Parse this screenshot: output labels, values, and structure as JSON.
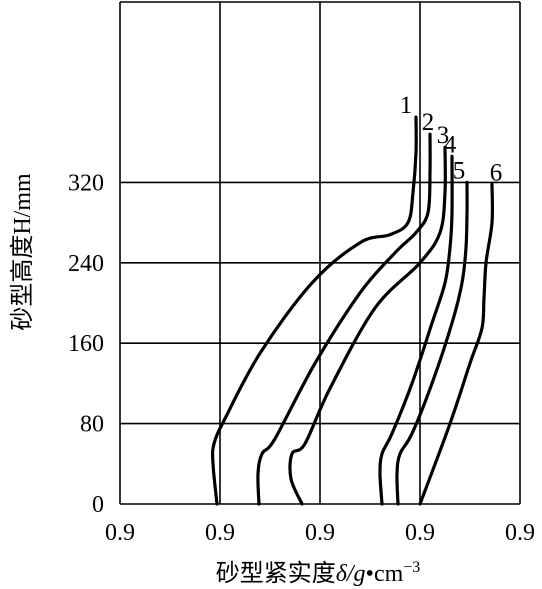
{
  "chart_data": {
    "type": "line",
    "title": "",
    "xlabel": "砂型紧实度δ/g•cm⁻³",
    "xlabel_parts": {
      "main": "砂型紧实度",
      "symbol": "δ",
      "unit": "/g",
      "dot": "•",
      "unit2": "cm",
      "exp": "−3"
    },
    "ylabel": "砂型高度H/mm",
    "xticks": [
      "0.9",
      "0.9",
      "0.9",
      "0.9",
      "0.9"
    ],
    "xlim": [
      0,
      4
    ],
    "yticks": [
      "0",
      "80",
      "160",
      "240",
      "320"
    ],
    "ylim": [
      0,
      400
    ],
    "grid": true,
    "series": [
      {
        "name": "1",
        "x": [
          0.97,
          0.93,
          0.94,
          1.05,
          1.4,
          1.92,
          2.4,
          2.7,
          2.88,
          2.93,
          2.96,
          2.96
        ],
        "y": [
          0,
          40,
          60,
          85,
          150,
          220,
          260,
          268,
          280,
          310,
          350,
          385
        ]
      },
      {
        "name": "2",
        "x": [
          1.39,
          1.38,
          1.42,
          1.55,
          1.95,
          2.4,
          2.75,
          2.96,
          3.08,
          3.1,
          3.1
        ],
        "y": [
          0,
          30,
          50,
          65,
          140,
          210,
          250,
          270,
          290,
          330,
          368
        ]
      },
      {
        "name": "3",
        "x": [
          1.82,
          1.71,
          1.72,
          1.85,
          2.1,
          2.55,
          3.0,
          3.2,
          3.25,
          3.25
        ],
        "y": [
          0,
          25,
          50,
          60,
          115,
          195,
          240,
          270,
          310,
          355
        ]
      },
      {
        "name": "4",
        "x": [
          2.62,
          2.6,
          2.62,
          2.72,
          2.92,
          3.12,
          3.25,
          3.3,
          3.32,
          3.32
        ],
        "y": [
          0,
          30,
          50,
          70,
          120,
          180,
          220,
          255,
          290,
          346
        ]
      },
      {
        "name": "5",
        "x": [
          2.78,
          2.77,
          2.8,
          2.92,
          3.12,
          3.32,
          3.42,
          3.46,
          3.47,
          3.47
        ],
        "y": [
          0,
          30,
          50,
          70,
          120,
          180,
          220,
          255,
          290,
          320
        ]
      },
      {
        "name": "6",
        "x": [
          3.0,
          3.3,
          3.5,
          3.62,
          3.64,
          3.66,
          3.72,
          3.72
        ],
        "y": [
          0,
          80,
          140,
          175,
          205,
          240,
          280,
          318
        ]
      }
    ]
  }
}
